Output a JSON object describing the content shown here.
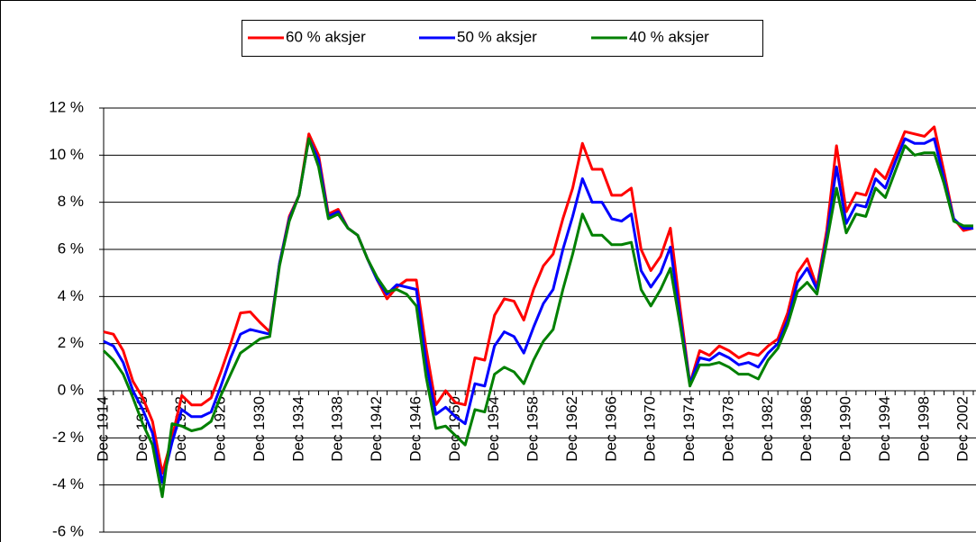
{
  "chart_data": {
    "type": "line",
    "categories": [
      "Dec 1914",
      null,
      null,
      null,
      "Dec 1918",
      null,
      null,
      null,
      "Dec 1922",
      null,
      null,
      null,
      "Dec 1926",
      null,
      null,
      null,
      "Dec 1930",
      null,
      null,
      null,
      "Dec 1934",
      null,
      null,
      null,
      "Dec 1938",
      null,
      null,
      null,
      "Dec 1942",
      null,
      null,
      null,
      "Dec 1946",
      null,
      null,
      null,
      "Dec 1950",
      null,
      null,
      null,
      "Dec 1954",
      null,
      null,
      null,
      "Dec 1958",
      null,
      null,
      null,
      "Dec 1962",
      null,
      null,
      null,
      "Dec 1966",
      null,
      null,
      null,
      "Dec 1970",
      null,
      null,
      null,
      "Dec 1974",
      null,
      null,
      null,
      "Dec 1978",
      null,
      null,
      null,
      "Dec 1982",
      null,
      null,
      null,
      "Dec 1986",
      null,
      null,
      null,
      "Dec 1990",
      null,
      null,
      null,
      "Dec 1994",
      null,
      null,
      null,
      "Dec 1998",
      null,
      null,
      null,
      "Dec 2002",
      null
    ],
    "series": [
      {
        "name": "60 % aksjer",
        "color": "#ff0000",
        "values": [
          2.5,
          2.4,
          1.7,
          0.4,
          -0.3,
          -1.3,
          -3.5,
          -2.0,
          -0.2,
          -0.6,
          -0.6,
          -0.3,
          0.8,
          2.0,
          3.3,
          3.35,
          2.9,
          2.5,
          5.4,
          7.4,
          8.3,
          10.9,
          10.0,
          7.5,
          7.7,
          6.9,
          6.6,
          5.6,
          4.7,
          3.9,
          4.4,
          4.7,
          4.7,
          1.8,
          -0.6,
          0.0,
          -0.5,
          -0.6,
          1.4,
          1.3,
          3.2,
          3.9,
          3.8,
          3.0,
          4.3,
          5.3,
          5.8,
          7.3,
          8.6,
          10.5,
          9.4,
          9.4,
          8.3,
          8.3,
          8.6,
          6.0,
          5.1,
          5.7,
          6.9,
          3.5,
          0.3,
          1.7,
          1.5,
          1.9,
          1.7,
          1.4,
          1.6,
          1.5,
          1.9,
          2.2,
          3.3,
          5.0,
          5.6,
          4.4,
          6.8,
          10.4,
          7.6,
          8.4,
          8.3,
          9.4,
          9.0,
          10.0,
          11.0,
          10.9,
          10.8,
          11.2,
          9.3,
          7.3,
          6.8,
          6.9
        ]
      },
      {
        "name": "50 % aksjer",
        "color": "#0000ff",
        "values": [
          2.1,
          1.9,
          1.2,
          0.0,
          -0.8,
          -1.8,
          -3.9,
          -2.2,
          -0.8,
          -1.1,
          -1.1,
          -0.9,
          0.2,
          1.4,
          2.4,
          2.6,
          2.5,
          2.4,
          5.4,
          7.3,
          8.3,
          10.7,
          9.8,
          7.4,
          7.6,
          6.9,
          6.6,
          5.6,
          4.7,
          4.1,
          4.5,
          4.4,
          4.3,
          1.2,
          -1.0,
          -0.7,
          -1.1,
          -1.4,
          0.3,
          0.2,
          1.9,
          2.5,
          2.3,
          1.6,
          2.7,
          3.7,
          4.3,
          6.0,
          7.4,
          9.0,
          8.0,
          8.0,
          7.3,
          7.2,
          7.5,
          5.1,
          4.4,
          5.0,
          6.1,
          3.1,
          0.3,
          1.4,
          1.3,
          1.6,
          1.4,
          1.1,
          1.2,
          1.0,
          1.6,
          2.0,
          3.0,
          4.6,
          5.2,
          4.3,
          6.5,
          9.5,
          7.1,
          7.9,
          7.8,
          9.0,
          8.6,
          9.7,
          10.7,
          10.5,
          10.5,
          10.7,
          9.0,
          7.3,
          6.9,
          6.9
        ]
      },
      {
        "name": "40 % aksjer",
        "color": "#008000",
        "values": [
          1.7,
          1.3,
          0.7,
          -0.3,
          -1.4,
          -2.3,
          -4.5,
          -1.4,
          -1.5,
          -1.7,
          -1.6,
          -1.3,
          -0.2,
          0.7,
          1.6,
          1.9,
          2.2,
          2.3,
          5.3,
          7.2,
          8.3,
          10.7,
          9.5,
          7.3,
          7.5,
          6.9,
          6.6,
          5.6,
          4.8,
          4.2,
          4.3,
          4.1,
          3.6,
          0.6,
          -1.6,
          -1.5,
          -1.9,
          -2.3,
          -0.8,
          -0.9,
          0.7,
          1.0,
          0.8,
          0.3,
          1.3,
          2.1,
          2.6,
          4.3,
          5.8,
          7.5,
          6.6,
          6.6,
          6.2,
          6.2,
          6.3,
          4.3,
          3.6,
          4.3,
          5.2,
          2.8,
          0.2,
          1.1,
          1.1,
          1.2,
          1.0,
          0.7,
          0.7,
          0.5,
          1.3,
          1.8,
          2.8,
          4.2,
          4.6,
          4.1,
          6.3,
          8.6,
          6.7,
          7.5,
          7.4,
          8.6,
          8.2,
          9.3,
          10.4,
          10.0,
          10.1,
          10.1,
          8.8,
          7.2,
          7.0,
          7.0
        ]
      }
    ],
    "ylim": [
      -6,
      12
    ],
    "yticks": [
      {
        "value": -6,
        "label": "-6 %"
      },
      {
        "value": -4,
        "label": "-4 %"
      },
      {
        "value": -2,
        "label": "-2 %"
      },
      {
        "value": 0,
        "label": "0 %"
      },
      {
        "value": 2,
        "label": "2 %"
      },
      {
        "value": 4,
        "label": "4 %"
      },
      {
        "value": 6,
        "label": "6 %"
      },
      {
        "value": 8,
        "label": "8 %"
      },
      {
        "value": 10,
        "label": "10 %"
      },
      {
        "value": 12,
        "label": "12 %"
      }
    ],
    "grid": true,
    "legend": "top"
  }
}
